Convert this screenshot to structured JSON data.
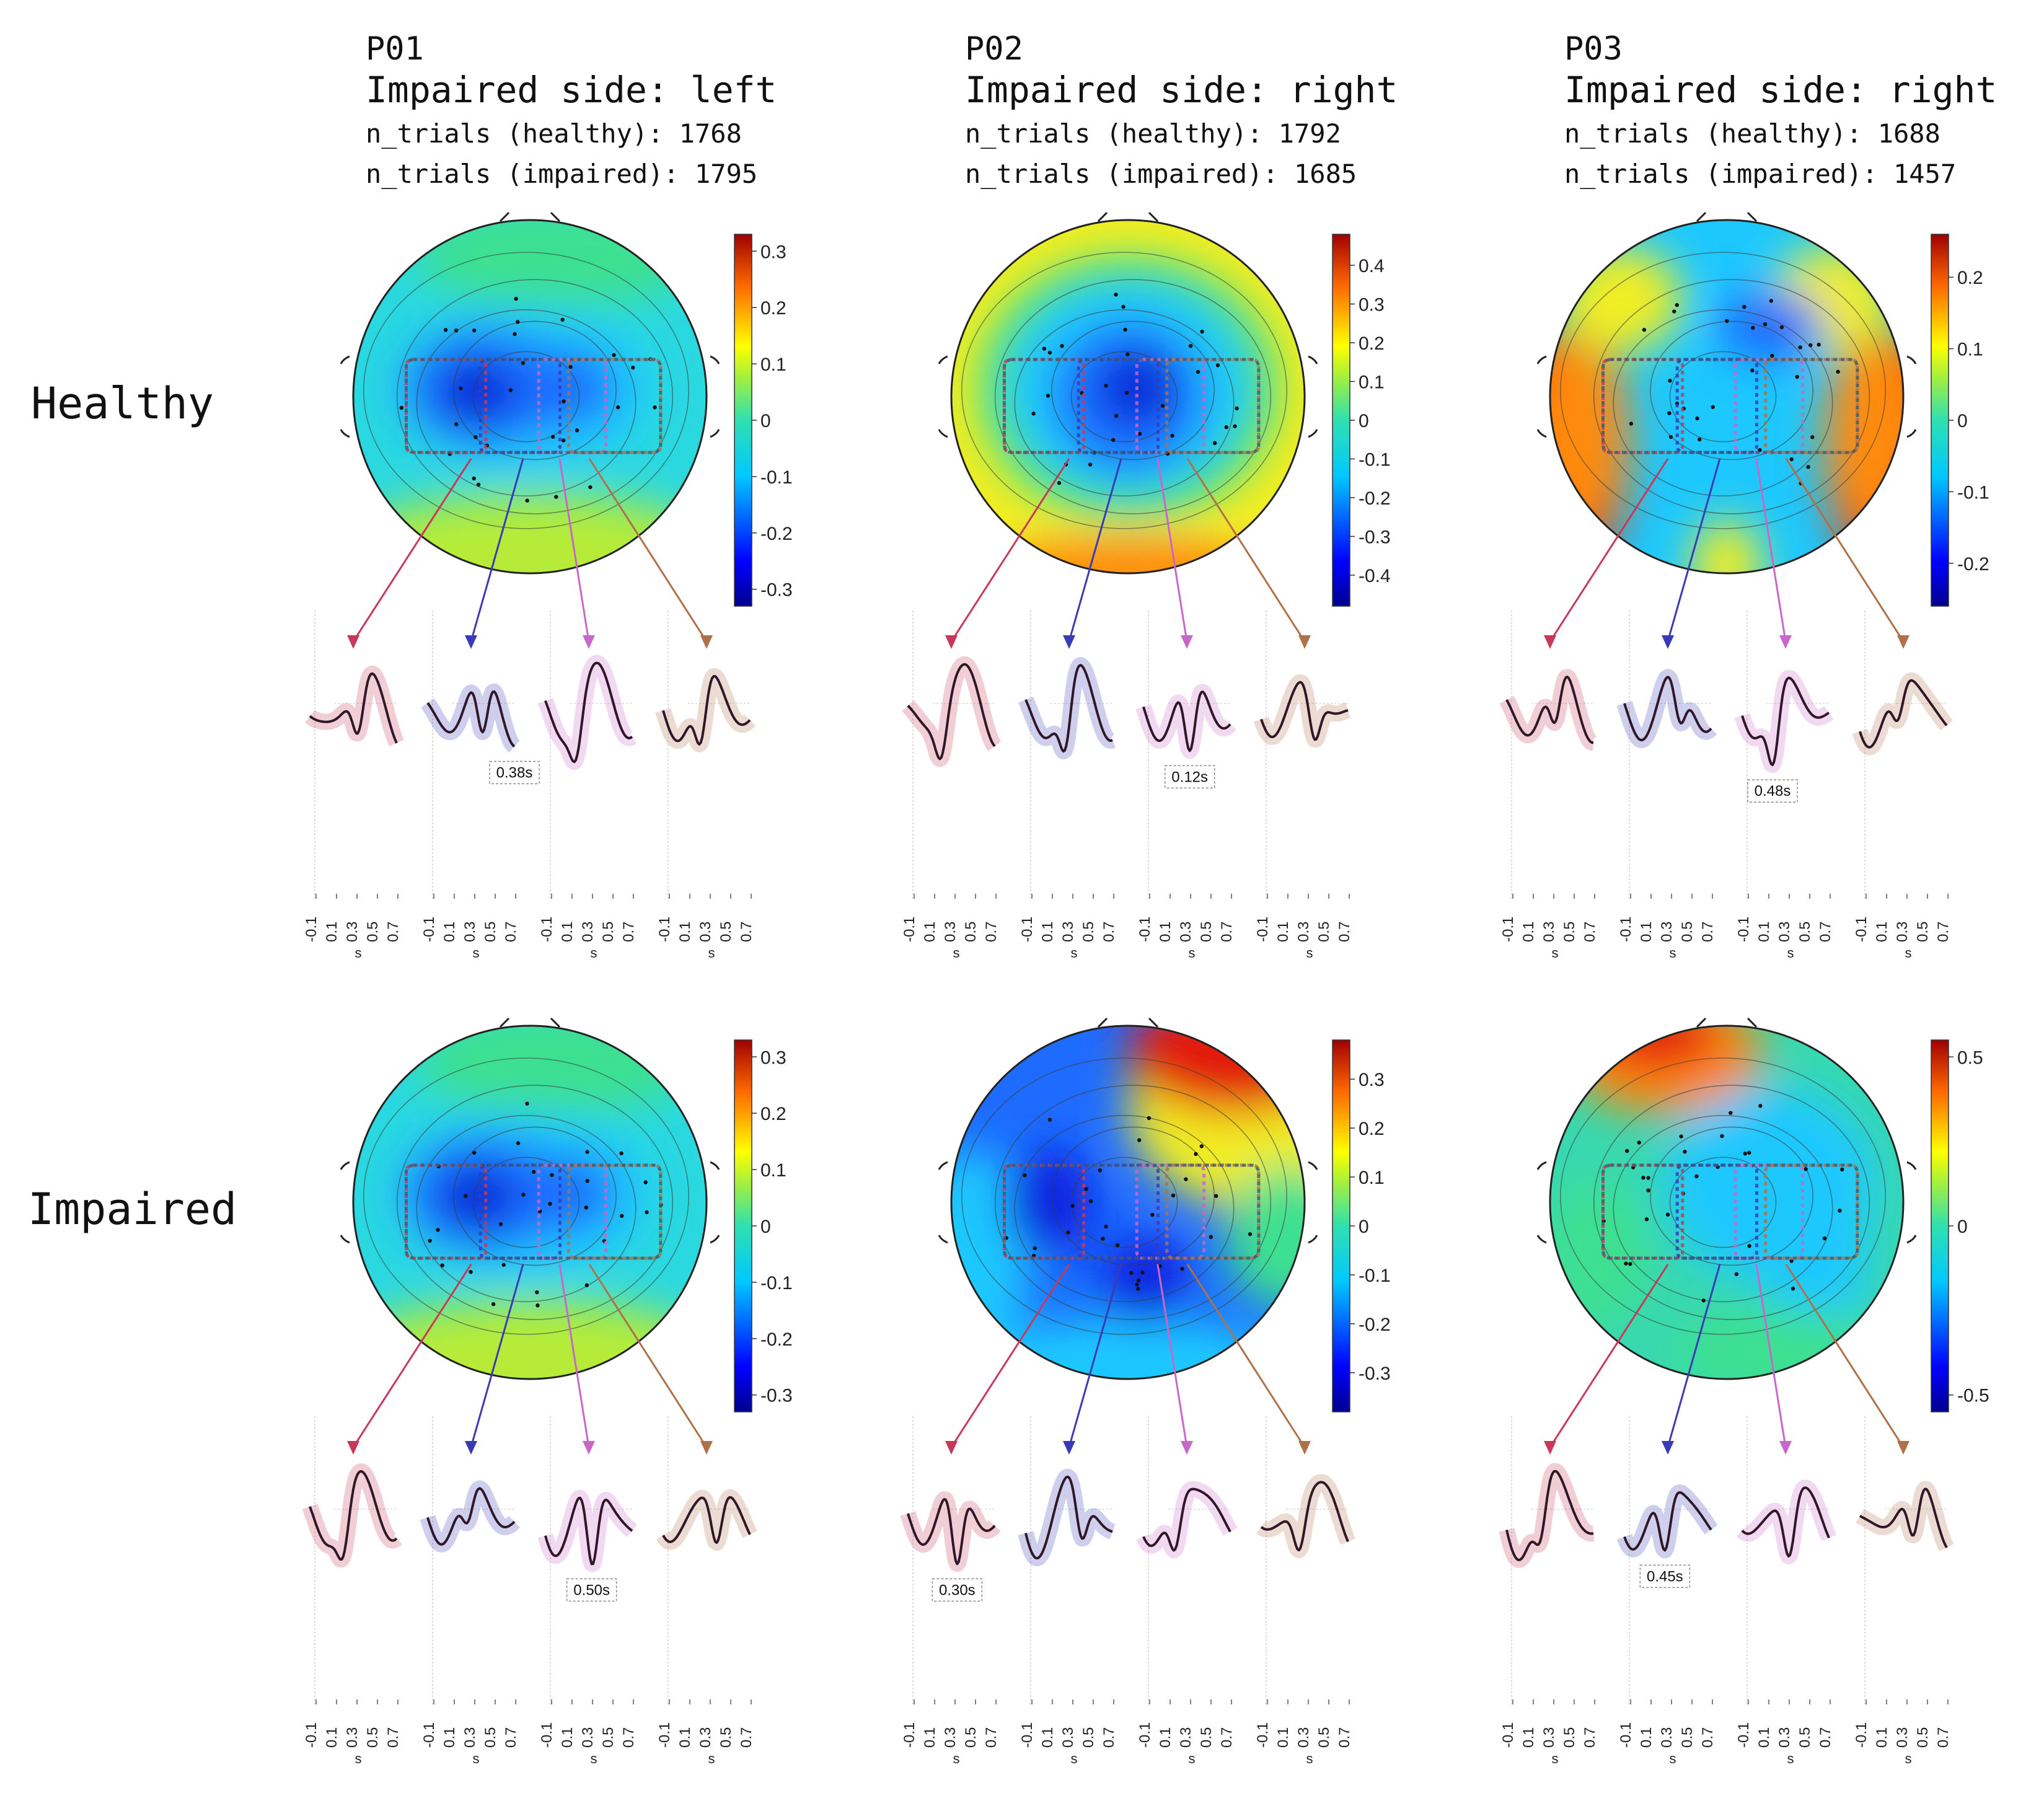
{
  "chart_data": {
    "type": "topoplot-erp-grid",
    "row_labels": [
      "Healthy",
      "Impaired"
    ],
    "participants": [
      {
        "id": "P01",
        "impaired_side": "Impaired side: left",
        "n_healthy": "n_trials (healthy): 1768",
        "n_impaired": "n_trials (impaired): 1795"
      },
      {
        "id": "P02",
        "impaired_side": "Impaired side: right",
        "n_healthy": "n_trials (healthy): 1792",
        "n_impaired": "n_trials (impaired): 1685"
      },
      {
        "id": "P03",
        "impaired_side": "Impaired side: right",
        "n_healthy": "n_trials (healthy): 1688",
        "n_impaired": "n_trials (impaired): 1457"
      }
    ],
    "erp_x_ticks": [
      "-0.1",
      "0.1",
      "0.3",
      "0.5",
      "0.7"
    ],
    "erp_x_label": "s",
    "roi_colors": [
      "#c8385a",
      "#3a3ab8",
      "#c966c9",
      "#b0704a"
    ],
    "panels": [
      {
        "row": 0,
        "col": 0,
        "colorbar": {
          "min": -0.33,
          "max": 0.33,
          "ticks": [
            "0.3",
            "0.2",
            "0.1",
            "0",
            "-0.1",
            "-0.2",
            "-0.3"
          ],
          "tickvals": [
            0.3,
            0.2,
            0.1,
            0,
            -0.1,
            -0.2,
            -0.3
          ]
        },
        "latency": "0.38s",
        "latency_roi": 1,
        "palette": "blue-center"
      },
      {
        "row": 0,
        "col": 1,
        "colorbar": {
          "min": -0.48,
          "max": 0.48,
          "ticks": [
            "0.4",
            "0.3",
            "0.2",
            "0.1",
            "0",
            "-0.1",
            "-0.2",
            "-0.3",
            "-0.4"
          ],
          "tickvals": [
            0.4,
            0.3,
            0.2,
            0.1,
            0,
            -0.1,
            -0.2,
            -0.3,
            -0.4
          ]
        },
        "latency": "0.12s",
        "latency_roi": 2,
        "palette": "blue-yellow"
      },
      {
        "row": 0,
        "col": 2,
        "colorbar": {
          "min": -0.26,
          "max": 0.26,
          "ticks": [
            "0.2",
            "0.1",
            "0",
            "-0.1",
            "-0.2"
          ],
          "tickvals": [
            0.2,
            0.1,
            0,
            -0.1,
            -0.2
          ]
        },
        "latency": "0.48s",
        "latency_roi": 2,
        "palette": "red-sides"
      },
      {
        "row": 1,
        "col": 0,
        "colorbar": {
          "min": -0.33,
          "max": 0.33,
          "ticks": [
            "0.3",
            "0.2",
            "0.1",
            "0",
            "-0.1",
            "-0.2",
            "-0.3"
          ],
          "tickvals": [
            0.3,
            0.2,
            0.1,
            0,
            -0.1,
            -0.2,
            -0.3
          ]
        },
        "latency": "0.50s",
        "latency_roi": 2,
        "palette": "blue-center"
      },
      {
        "row": 1,
        "col": 1,
        "colorbar": {
          "min": -0.38,
          "max": 0.38,
          "ticks": [
            "0.3",
            "0.2",
            "0.1",
            "0",
            "-0.1",
            "-0.2",
            "-0.3"
          ],
          "tickvals": [
            0.3,
            0.2,
            0.1,
            0,
            -0.1,
            -0.2,
            -0.3
          ]
        },
        "latency": "0.30s",
        "latency_roi": 0,
        "palette": "red-top-right"
      },
      {
        "row": 1,
        "col": 2,
        "colorbar": {
          "min": -0.55,
          "max": 0.55,
          "ticks": [
            "0.5",
            "0",
            "-0.5"
          ],
          "tickvals": [
            0.5,
            0,
            -0.5
          ]
        },
        "latency": "0.45s",
        "latency_roi": 1,
        "palette": "red-top-left"
      }
    ]
  }
}
